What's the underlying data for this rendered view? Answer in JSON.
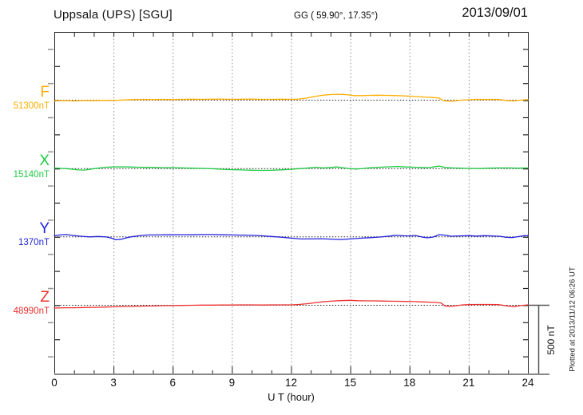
{
  "chart_data": {
    "type": "line",
    "title": "Uppsala (UPS)  [SGU]",
    "coordinates": "GG ( 59.90°,  17.35°)",
    "date": "2013/09/01",
    "xlabel": "U T (hour)",
    "x_range": [
      0,
      24
    ],
    "x_ticks": [
      "0",
      "3",
      "6",
      "9",
      "12",
      "15",
      "18",
      "21",
      "24"
    ],
    "grid": {
      "vertical_dotted_every_hours": 3,
      "minor_ticks_every_hours": 1
    },
    "scale_bar": {
      "label": "500 nT",
      "nT": 500
    },
    "footer_note": "Plotted at 2013/11/12 06:26 UT",
    "series": [
      {
        "name": "F",
        "baseline_label": "51300nT",
        "baseline_nT": 51300,
        "color": "#FFAE00",
        "points": [
          [
            0,
            -9
          ],
          [
            0.5,
            -6
          ],
          [
            1,
            -9
          ],
          [
            1.5,
            -5
          ],
          [
            2,
            -7
          ],
          [
            2.5,
            -4
          ],
          [
            3,
            -5
          ],
          [
            3.5,
            -2
          ],
          [
            4,
            1
          ],
          [
            4.5,
            3
          ],
          [
            5,
            1
          ],
          [
            5.5,
            3
          ],
          [
            6,
            1
          ],
          [
            6.5,
            3
          ],
          [
            7,
            4
          ],
          [
            7.5,
            3
          ],
          [
            8,
            4
          ],
          [
            8.5,
            5
          ],
          [
            9,
            3
          ],
          [
            9.5,
            4
          ],
          [
            10,
            5
          ],
          [
            10.5,
            3
          ],
          [
            11,
            3
          ],
          [
            11.5,
            4
          ],
          [
            12,
            3
          ],
          [
            12.4,
            5
          ],
          [
            12.8,
            12
          ],
          [
            13.2,
            24
          ],
          [
            13.6,
            33
          ],
          [
            14,
            38
          ],
          [
            14.4,
            40
          ],
          [
            14.8,
            37
          ],
          [
            15.2,
            30
          ],
          [
            15.6,
            30
          ],
          [
            16,
            32
          ],
          [
            16.4,
            33
          ],
          [
            16.8,
            32
          ],
          [
            17.2,
            31
          ],
          [
            17.6,
            29
          ],
          [
            18,
            26
          ],
          [
            18.4,
            23
          ],
          [
            18.8,
            20
          ],
          [
            19.2,
            16
          ],
          [
            19.5,
            12
          ],
          [
            19.7,
            -6
          ],
          [
            20,
            -12
          ],
          [
            20.3,
            -8
          ],
          [
            20.6,
            -3
          ],
          [
            21,
            0
          ],
          [
            21.4,
            3
          ],
          [
            21.8,
            2
          ],
          [
            22.2,
            3
          ],
          [
            22.6,
            1
          ],
          [
            23,
            -7
          ],
          [
            23.3,
            -9
          ],
          [
            23.6,
            -3
          ],
          [
            24,
            1
          ]
        ]
      },
      {
        "name": "X",
        "baseline_label": "15140nT",
        "baseline_nT": 15140,
        "color": "#1ECC44",
        "points": [
          [
            0,
            1
          ],
          [
            0.4,
            -2
          ],
          [
            0.8,
            -6
          ],
          [
            1.2,
            -13
          ],
          [
            1.5,
            -14
          ],
          [
            1.8,
            -8
          ],
          [
            2.2,
            0
          ],
          [
            2.6,
            7
          ],
          [
            3,
            9
          ],
          [
            3.4,
            10
          ],
          [
            3.8,
            9
          ],
          [
            4.2,
            7
          ],
          [
            4.6,
            6
          ],
          [
            5,
            6
          ],
          [
            5.5,
            4
          ],
          [
            6,
            4
          ],
          [
            6.5,
            2
          ],
          [
            7,
            0
          ],
          [
            7.5,
            -2
          ],
          [
            8,
            -4
          ],
          [
            8.5,
            -8
          ],
          [
            9,
            -11
          ],
          [
            9.5,
            -13
          ],
          [
            10,
            -15
          ],
          [
            10.5,
            -16
          ],
          [
            11,
            -15
          ],
          [
            11.5,
            -12
          ],
          [
            12,
            -8
          ],
          [
            12.5,
            -3
          ],
          [
            13,
            3
          ],
          [
            13.3,
            7
          ],
          [
            13.6,
            2
          ],
          [
            14,
            5
          ],
          [
            14.3,
            9
          ],
          [
            14.7,
            2
          ],
          [
            15,
            -4
          ],
          [
            15.3,
            -7
          ],
          [
            15.7,
            -2
          ],
          [
            16,
            3
          ],
          [
            16.5,
            7
          ],
          [
            17,
            10
          ],
          [
            17.4,
            12
          ],
          [
            17.8,
            9
          ],
          [
            18.2,
            7
          ],
          [
            18.6,
            5
          ],
          [
            19,
            4
          ],
          [
            19.3,
            11
          ],
          [
            19.5,
            15
          ],
          [
            19.8,
            5
          ],
          [
            20.2,
            2
          ],
          [
            20.6,
            0
          ],
          [
            21,
            -2
          ],
          [
            21.5,
            -3
          ],
          [
            22,
            0
          ],
          [
            22.5,
            2
          ],
          [
            23,
            2
          ],
          [
            23.5,
            0
          ],
          [
            24,
            2
          ]
        ]
      },
      {
        "name": "Y",
        "baseline_label": "1370nT",
        "baseline_nT": 1370,
        "color": "#2222DD",
        "points": [
          [
            0,
            5
          ],
          [
            0.3,
            11
          ],
          [
            0.6,
            14
          ],
          [
            1,
            7
          ],
          [
            1.4,
            1
          ],
          [
            1.8,
            -3
          ],
          [
            2.2,
            0
          ],
          [
            2.6,
            -3
          ],
          [
            2.9,
            -12
          ],
          [
            3.1,
            -24
          ],
          [
            3.4,
            -20
          ],
          [
            3.7,
            -8
          ],
          [
            4,
            0
          ],
          [
            4.4,
            7
          ],
          [
            4.8,
            11
          ],
          [
            5.2,
            11
          ],
          [
            5.6,
            13
          ],
          [
            6,
            12
          ],
          [
            6.5,
            13
          ],
          [
            7,
            12
          ],
          [
            7.5,
            14
          ],
          [
            8,
            14
          ],
          [
            8.5,
            12
          ],
          [
            9,
            11
          ],
          [
            9.5,
            10
          ],
          [
            10,
            8
          ],
          [
            10.5,
            5
          ],
          [
            11,
            0
          ],
          [
            11.5,
            -5
          ],
          [
            12,
            -12
          ],
          [
            12.5,
            -18
          ],
          [
            13,
            -18
          ],
          [
            13.5,
            -16
          ],
          [
            14,
            -19
          ],
          [
            14.5,
            -22
          ],
          [
            15,
            -18
          ],
          [
            15.5,
            -13
          ],
          [
            16,
            -9
          ],
          [
            16.5,
            -4
          ],
          [
            17,
            3
          ],
          [
            17.3,
            8
          ],
          [
            17.7,
            5
          ],
          [
            18,
            4
          ],
          [
            18.3,
            7
          ],
          [
            18.6,
            -3
          ],
          [
            18.9,
            -10
          ],
          [
            19.2,
            -4
          ],
          [
            19.5,
            13
          ],
          [
            19.8,
            10
          ],
          [
            20.1,
            2
          ],
          [
            20.5,
            4
          ],
          [
            21,
            6
          ],
          [
            21.4,
            3
          ],
          [
            21.8,
            6
          ],
          [
            22.2,
            4
          ],
          [
            22.6,
            1
          ],
          [
            22.9,
            -6
          ],
          [
            23.2,
            -8
          ],
          [
            23.5,
            -1
          ],
          [
            23.8,
            6
          ],
          [
            24,
            6
          ]
        ]
      },
      {
        "name": "Z",
        "baseline_label": "48990nT",
        "baseline_nT": 48990,
        "color": "#EE3030",
        "points": [
          [
            0,
            -23
          ],
          [
            0.5,
            -21
          ],
          [
            1,
            -21
          ],
          [
            1.5,
            -19
          ],
          [
            2,
            -18
          ],
          [
            2.5,
            -16
          ],
          [
            3,
            -14
          ],
          [
            3.5,
            -12
          ],
          [
            4,
            -11
          ],
          [
            4.5,
            -9
          ],
          [
            5,
            -8
          ],
          [
            5.5,
            -6
          ],
          [
            6,
            -5
          ],
          [
            6.5,
            -4
          ],
          [
            7,
            -3
          ],
          [
            7.5,
            -2
          ],
          [
            8,
            -2
          ],
          [
            8.5,
            -1
          ],
          [
            9,
            -1
          ],
          [
            9.5,
            0
          ],
          [
            10,
            0
          ],
          [
            10.5,
            -1
          ],
          [
            11,
            0
          ],
          [
            11.5,
            0
          ],
          [
            12,
            0
          ],
          [
            12.4,
            3
          ],
          [
            12.8,
            8
          ],
          [
            13.2,
            15
          ],
          [
            13.6,
            22
          ],
          [
            14,
            27
          ],
          [
            14.5,
            31
          ],
          [
            15,
            33
          ],
          [
            15.4,
            30
          ],
          [
            15.8,
            29
          ],
          [
            16.2,
            29
          ],
          [
            16.6,
            28
          ],
          [
            17,
            27
          ],
          [
            17.4,
            26
          ],
          [
            17.8,
            25
          ],
          [
            18.2,
            24
          ],
          [
            18.6,
            22
          ],
          [
            19,
            20
          ],
          [
            19.3,
            18
          ],
          [
            19.6,
            14
          ],
          [
            19.8,
            -8
          ],
          [
            20.1,
            -11
          ],
          [
            20.4,
            -5
          ],
          [
            20.7,
            0
          ],
          [
            21,
            2
          ],
          [
            21.5,
            3
          ],
          [
            22,
            3
          ],
          [
            22.5,
            2
          ],
          [
            23,
            -9
          ],
          [
            23.3,
            -13
          ],
          [
            23.6,
            -6
          ],
          [
            24,
            0
          ]
        ]
      }
    ]
  }
}
